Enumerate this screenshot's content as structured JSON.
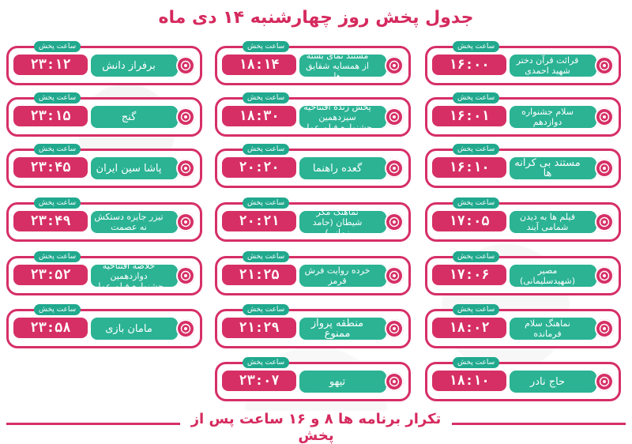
{
  "title": "جدول پخش روز چهارشنبه ۱۴ دی ماه",
  "time_label": "ساعت پخش",
  "footer": "تکرار برنامه ها ۸ و ۱۶ ساعت پس از پخش",
  "colors": {
    "accent": "#d62f66",
    "primary": "#2bb394",
    "badge": "#21a98e"
  },
  "columns": [
    {
      "items": [
        {
          "name": "قرائت قرآن دختر شهید احمدی",
          "time": "16:00"
        },
        {
          "name": "سلام جشنواره دوازدهم",
          "time": "16:01"
        },
        {
          "name": "مستند بی کرانه ها",
          "time": "16:10"
        },
        {
          "name": "فیلم ها به دیدن شمامی آیند",
          "time": "17:05"
        },
        {
          "name": "مصیر (شهیدسلیمانی)",
          "time": "17:06"
        },
        {
          "name": "نماهنگ سلام فرمانده",
          "time": "18:02"
        },
        {
          "name": "حاج نادر",
          "time": "18:10"
        }
      ]
    },
    {
      "items": [
        {
          "name": "مستند نمای بسته از همسایه شقایق ها",
          "time": "18:14"
        },
        {
          "name": "پخش زنده افتتاحیه سیزدهمین جشنواره فیلم عمار",
          "time": "18:30"
        },
        {
          "name": "گعده راهنما",
          "time": "20:20"
        },
        {
          "name": "نماهنگ مکر شیطان (حامد زمانی)",
          "time": "20:21"
        },
        {
          "name": "خرده روایت فرش قرمز",
          "time": "21:25"
        },
        {
          "name": "منطقه پرواز ممنوع",
          "time": "21:29"
        },
        {
          "name": "تیهو",
          "time": "23:07"
        }
      ]
    },
    {
      "items": [
        {
          "name": "برفراز دانش",
          "time": "23:12"
        },
        {
          "name": "گنج",
          "time": "23:15"
        },
        {
          "name": "پاشا سین ایران",
          "time": "23:45"
        },
        {
          "name": "تیزر جایزه دستکش نه عصمت",
          "time": "23:49"
        },
        {
          "name": "خلاصه افتتاحیه دوازدهمین جشنواره فیلم عمار",
          "time": "23:52"
        },
        {
          "name": "مامان بازی",
          "time": "23:58"
        }
      ]
    }
  ]
}
